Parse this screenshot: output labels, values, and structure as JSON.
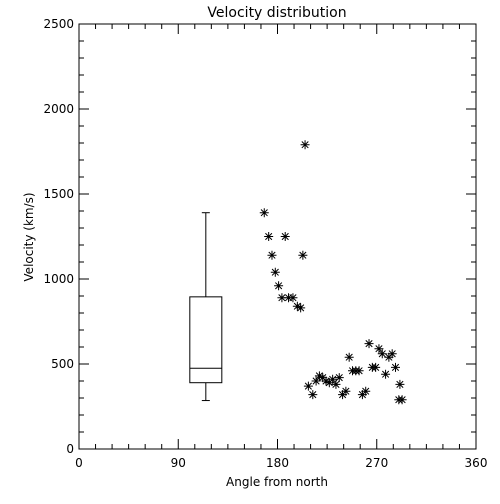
{
  "chart_data": {
    "type": "scatter",
    "title": "Velocity distribution",
    "xlabel": "Angle from north",
    "ylabel": "Velocity (km/s)",
    "xlim": [
      0,
      360
    ],
    "ylim": [
      0,
      2500
    ],
    "x_ticks": [
      0,
      90,
      180,
      270,
      360
    ],
    "y_ticks": [
      0,
      500,
      1000,
      1500,
      2000,
      2500
    ],
    "x_tick_labels": [
      "0",
      "90",
      "180",
      "270",
      "360"
    ],
    "y_tick_labels": [
      "0",
      "500",
      "1000",
      "1500",
      "2000",
      "2500"
    ],
    "grid": false,
    "marker": "asterisk",
    "points": [
      {
        "x": 168,
        "y": 1390
      },
      {
        "x": 172,
        "y": 1250
      },
      {
        "x": 175,
        "y": 1140
      },
      {
        "x": 178,
        "y": 1040
      },
      {
        "x": 181,
        "y": 960
      },
      {
        "x": 184,
        "y": 890
      },
      {
        "x": 187,
        "y": 1250
      },
      {
        "x": 190,
        "y": 890
      },
      {
        "x": 194,
        "y": 890
      },
      {
        "x": 198,
        "y": 840
      },
      {
        "x": 201,
        "y": 830
      },
      {
        "x": 203,
        "y": 1140
      },
      {
        "x": 205,
        "y": 1790
      },
      {
        "x": 208,
        "y": 370
      },
      {
        "x": 212,
        "y": 320
      },
      {
        "x": 215,
        "y": 400
      },
      {
        "x": 218,
        "y": 430
      },
      {
        "x": 221,
        "y": 420
      },
      {
        "x": 224,
        "y": 400
      },
      {
        "x": 227,
        "y": 390
      },
      {
        "x": 230,
        "y": 410
      },
      {
        "x": 233,
        "y": 380
      },
      {
        "x": 236,
        "y": 420
      },
      {
        "x": 239,
        "y": 320
      },
      {
        "x": 242,
        "y": 340
      },
      {
        "x": 245,
        "y": 540
      },
      {
        "x": 248,
        "y": 460
      },
      {
        "x": 251,
        "y": 460
      },
      {
        "x": 254,
        "y": 460
      },
      {
        "x": 257,
        "y": 320
      },
      {
        "x": 260,
        "y": 340
      },
      {
        "x": 263,
        "y": 620
      },
      {
        "x": 266,
        "y": 480
      },
      {
        "x": 269,
        "y": 480
      },
      {
        "x": 272,
        "y": 590
      },
      {
        "x": 275,
        "y": 560
      },
      {
        "x": 278,
        "y": 440
      },
      {
        "x": 281,
        "y": 540
      },
      {
        "x": 284,
        "y": 560
      },
      {
        "x": 287,
        "y": 480
      },
      {
        "x": 290,
        "y": 290
      },
      {
        "x": 293,
        "y": 290
      },
      {
        "x": 291,
        "y": 380
      }
    ],
    "boxplot": {
      "x": 115,
      "min": 285,
      "q1": 390,
      "median": 475,
      "q3": 895,
      "max": 1390
    }
  }
}
